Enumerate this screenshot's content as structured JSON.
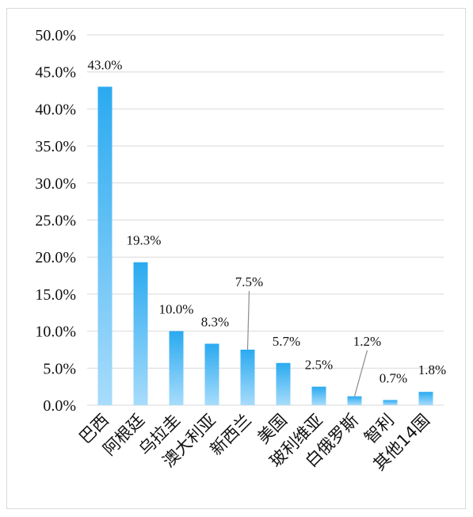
{
  "chart_data": {
    "type": "bar",
    "title": "",
    "xlabel": "",
    "ylabel": "",
    "categories": [
      "巴西",
      "阿根廷",
      "乌拉圭",
      "澳大利亚",
      "新西兰",
      "美国",
      "玻利维亚",
      "白俄罗斯",
      "智利",
      "其他14国"
    ],
    "values": [
      43.0,
      19.3,
      10.0,
      8.3,
      7.5,
      5.7,
      2.5,
      1.2,
      0.7,
      1.8
    ],
    "data_labels": [
      "43.0%",
      "19.3%",
      "10.0%",
      "8.3%",
      "7.5%",
      "5.7%",
      "2.5%",
      "1.2%",
      "0.7%",
      "1.8%"
    ],
    "ylim": [
      0,
      50
    ],
    "yticks": [
      "0.0%",
      "5.0%",
      "10.0%",
      "15.0%",
      "20.0%",
      "25.0%",
      "30.0%",
      "35.0%",
      "40.0%",
      "45.0%",
      "50.0%"
    ],
    "grid": true,
    "legend": "none",
    "bar_color_top": "#2aaaf0",
    "bar_color_bottom": "#a8dcfb",
    "gridline_color": "#d9d9d9"
  }
}
